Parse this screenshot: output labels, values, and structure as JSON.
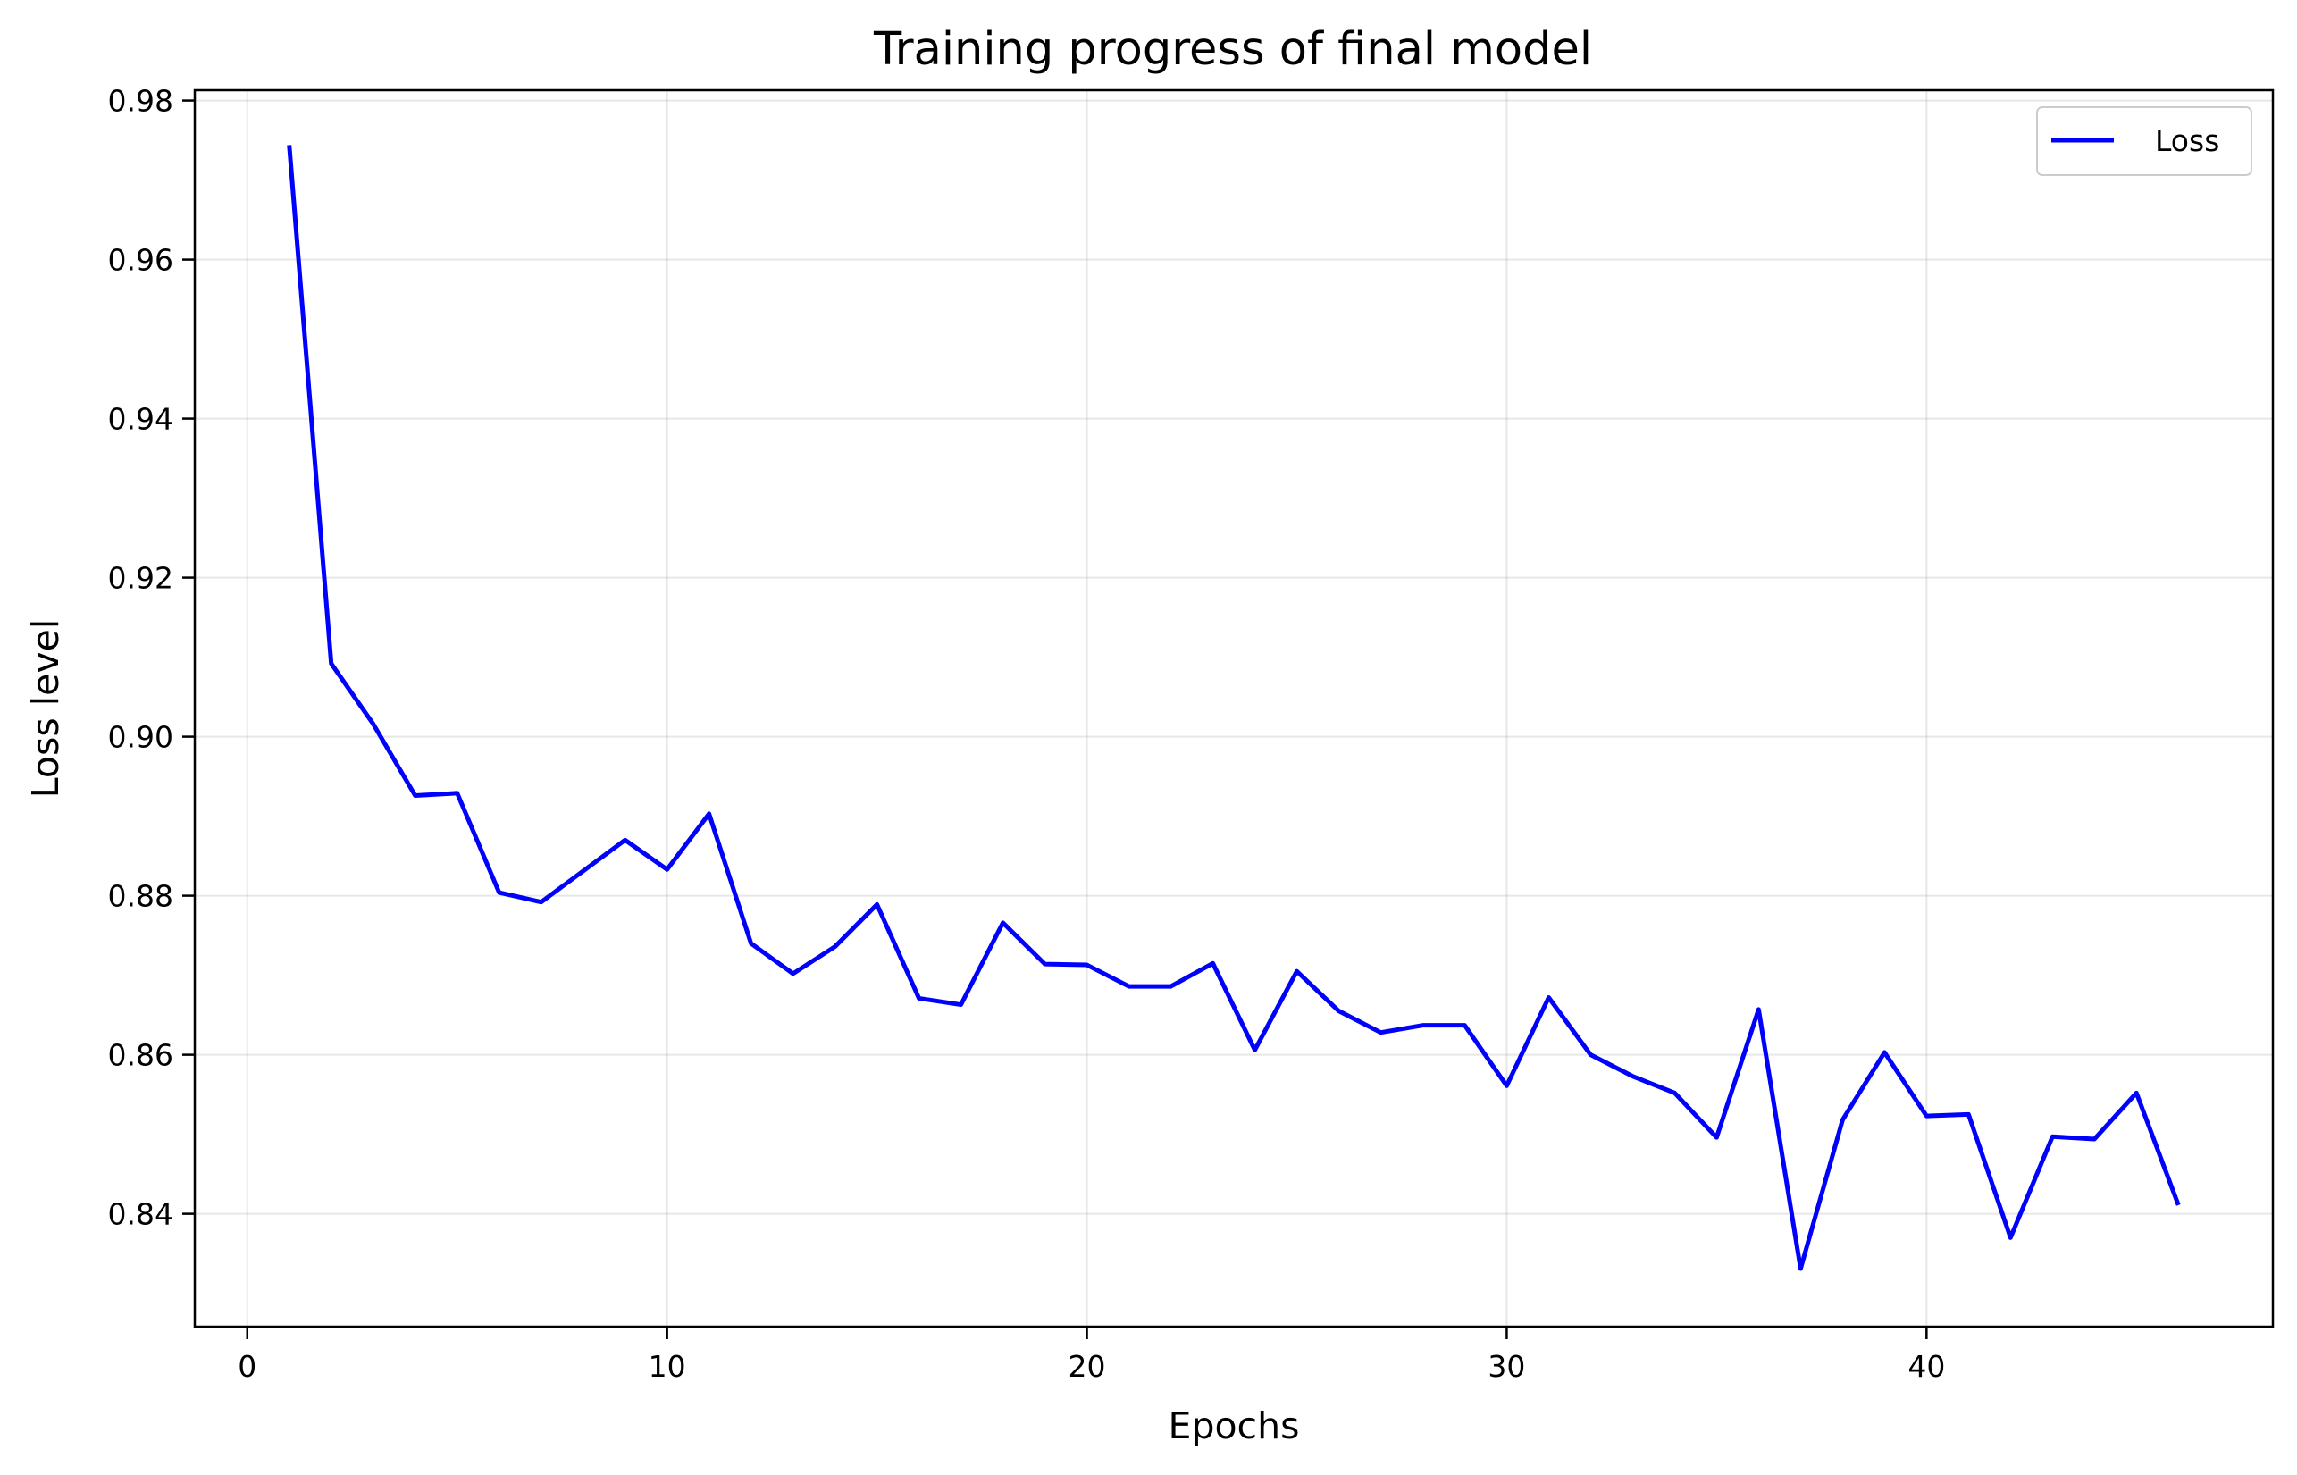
{
  "chart_data": {
    "type": "line",
    "title": "Training progress of final model",
    "xlabel": "Epochs",
    "ylabel": "Loss level",
    "xlim": [
      -1.25,
      48.25
    ],
    "ylim": [
      0.8258,
      0.9813
    ],
    "xticks": [
      0,
      10,
      20,
      30,
      40
    ],
    "xtick_labels": [
      "0",
      "10",
      "20",
      "30",
      "40"
    ],
    "yticks": [
      0.84,
      0.86,
      0.88,
      0.9,
      0.92,
      0.94,
      0.96,
      0.98
    ],
    "ytick_labels": [
      "0.84",
      "0.86",
      "0.88",
      "0.90",
      "0.92",
      "0.94",
      "0.96",
      "0.98"
    ],
    "grid": true,
    "legend_position": "top-right",
    "series": [
      {
        "name": "Loss",
        "color": "#0000ff",
        "x": [
          1,
          2,
          3,
          4,
          5,
          6,
          7,
          8,
          9,
          10,
          11,
          12,
          13,
          14,
          15,
          16,
          17,
          18,
          19,
          20,
          21,
          22,
          23,
          24,
          25,
          26,
          27,
          28,
          29,
          30,
          31,
          32,
          33,
          34,
          35,
          36,
          37,
          38,
          39,
          40,
          41,
          42,
          43,
          44,
          45,
          46
        ],
        "y": [
          0.9744,
          0.9092,
          0.9016,
          0.8926,
          0.8929,
          0.8804,
          0.8792,
          0.8831,
          0.887,
          0.8833,
          0.8903,
          0.874,
          0.8702,
          0.8736,
          0.8789,
          0.8671,
          0.8663,
          0.8766,
          0.8714,
          0.8713,
          0.8686,
          0.8686,
          0.8715,
          0.8606,
          0.8705,
          0.8655,
          0.8628,
          0.8637,
          0.8637,
          0.8561,
          0.8672,
          0.86,
          0.8573,
          0.8552,
          0.8496,
          0.8657,
          0.8331,
          0.8518,
          0.8603,
          0.8523,
          0.8525,
          0.837,
          0.8497,
          0.8494,
          0.8552,
          0.8411
        ]
      }
    ]
  }
}
